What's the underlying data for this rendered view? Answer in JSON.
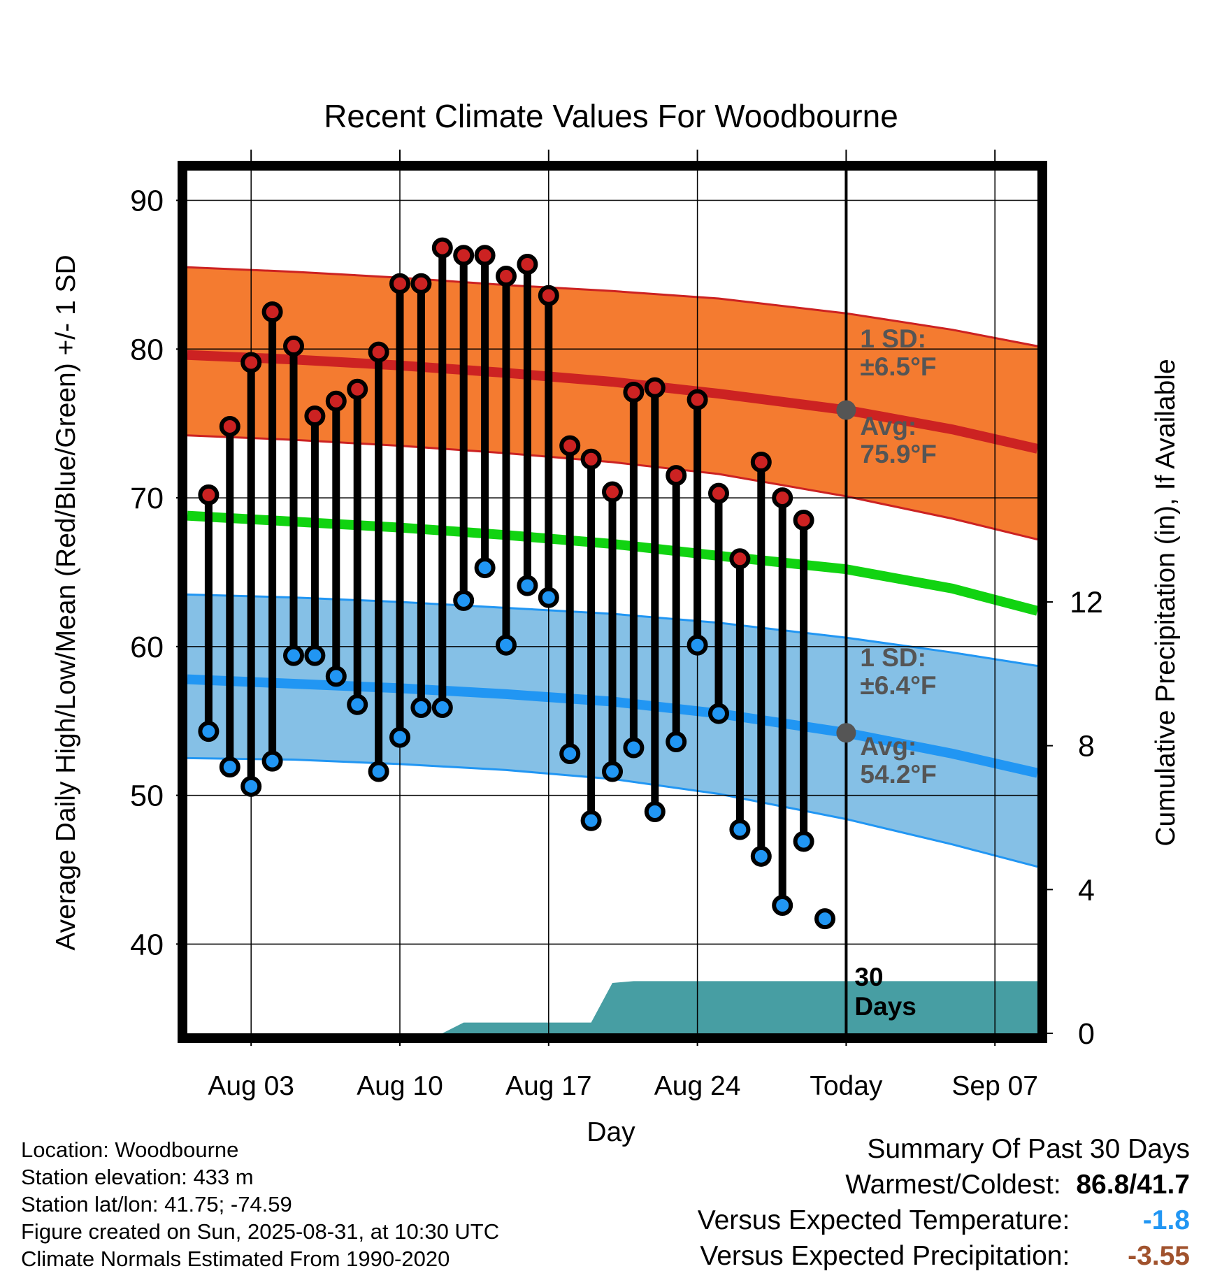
{
  "title": "Recent Climate Values For Woodbourne",
  "chart_data": {
    "type": "line",
    "title": "Recent Climate Values For Woodbourne",
    "xlabel": "Day",
    "ylabel": "Average Daily High/Low/Mean (Red/Blue/Green) +/- 1 SD",
    "y2label": "Cumulative Precipitation (in), If Available",
    "ylim": [
      34,
      92
    ],
    "y2lim": [
      0,
      24
    ],
    "xlim": [
      "2025-07-31",
      "2025-09-09"
    ],
    "y_ticks": [
      "40",
      "50",
      "60",
      "70",
      "80",
      "90"
    ],
    "y2_ticks": [
      "0",
      "4",
      "8",
      "12"
    ],
    "x_ticks": [
      {
        "date": "2025-08-03",
        "label": "Aug 03"
      },
      {
        "date": "2025-08-10",
        "label": "Aug 10"
      },
      {
        "date": "2025-08-17",
        "label": "Aug 17"
      },
      {
        "date": "2025-08-24",
        "label": "Aug 24"
      },
      {
        "date": "2025-08-31",
        "label": "Today"
      },
      {
        "date": "2025-09-07",
        "label": "Sep 07"
      }
    ],
    "today": "2025-08-31",
    "grid": true,
    "normals": {
      "dates": [
        "2025-07-31",
        "2025-08-05",
        "2025-08-10",
        "2025-08-15",
        "2025-08-20",
        "2025-08-25",
        "2025-08-31",
        "2025-09-05",
        "2025-09-09"
      ],
      "high_avg": [
        79.6,
        79.3,
        78.9,
        78.4,
        77.8,
        77.0,
        75.9,
        74.6,
        73.3
      ],
      "high_upper": [
        85.5,
        85.2,
        84.8,
        84.3,
        83.9,
        83.4,
        82.4,
        81.3,
        80.2
      ],
      "high_lower": [
        74.2,
        73.9,
        73.5,
        73.0,
        72.4,
        71.6,
        70.1,
        68.6,
        67.2
      ],
      "mean_avg": [
        68.8,
        68.4,
        68.0,
        67.5,
        66.9,
        66.1,
        65.2,
        63.9,
        62.4
      ],
      "low_avg": [
        57.8,
        57.5,
        57.2,
        56.8,
        56.3,
        55.5,
        54.2,
        52.8,
        51.5
      ],
      "low_upper": [
        63.5,
        63.3,
        63.0,
        62.6,
        62.2,
        61.6,
        60.6,
        59.6,
        58.7
      ],
      "low_lower": [
        52.5,
        52.4,
        52.1,
        51.7,
        51.1,
        50.1,
        48.4,
        46.7,
        45.2
      ]
    },
    "series": [
      {
        "name": "Daily High",
        "color": "#cc2222",
        "x": [
          "2025-08-01",
          "2025-08-02",
          "2025-08-03",
          "2025-08-04",
          "2025-08-05",
          "2025-08-06",
          "2025-08-07",
          "2025-08-08",
          "2025-08-09",
          "2025-08-10",
          "2025-08-11",
          "2025-08-12",
          "2025-08-13",
          "2025-08-14",
          "2025-08-15",
          "2025-08-16",
          "2025-08-17",
          "2025-08-18",
          "2025-08-19",
          "2025-08-20",
          "2025-08-21",
          "2025-08-22",
          "2025-08-23",
          "2025-08-24",
          "2025-08-25",
          "2025-08-26",
          "2025-08-27",
          "2025-08-28",
          "2025-08-29",
          "2025-08-30"
        ],
        "values": [
          70.2,
          74.8,
          79.1,
          82.5,
          80.2,
          75.5,
          76.5,
          77.3,
          79.8,
          84.4,
          84.4,
          86.8,
          86.3,
          86.3,
          84.9,
          85.7,
          83.6,
          73.5,
          72.6,
          70.4,
          77.1,
          77.4,
          71.5,
          76.6,
          70.3,
          65.9,
          72.4,
          70.0,
          68.5,
          null
        ]
      },
      {
        "name": "Daily Low",
        "color": "#2196f3",
        "x": [
          "2025-08-01",
          "2025-08-02",
          "2025-08-03",
          "2025-08-04",
          "2025-08-05",
          "2025-08-06",
          "2025-08-07",
          "2025-08-08",
          "2025-08-09",
          "2025-08-10",
          "2025-08-11",
          "2025-08-12",
          "2025-08-13",
          "2025-08-14",
          "2025-08-15",
          "2025-08-16",
          "2025-08-17",
          "2025-08-18",
          "2025-08-19",
          "2025-08-20",
          "2025-08-21",
          "2025-08-22",
          "2025-08-23",
          "2025-08-24",
          "2025-08-25",
          "2025-08-26",
          "2025-08-27",
          "2025-08-28",
          "2025-08-29",
          "2025-08-30"
        ],
        "values": [
          54.3,
          51.9,
          50.6,
          52.3,
          59.4,
          59.4,
          58.0,
          56.1,
          51.6,
          53.9,
          55.9,
          55.9,
          63.1,
          65.3,
          60.1,
          64.1,
          63.3,
          52.8,
          48.3,
          51.6,
          53.2,
          48.9,
          53.6,
          60.1,
          55.5,
          47.7,
          45.9,
          42.6,
          46.9,
          41.7
        ]
      }
    ],
    "precipitation": {
      "color": "#479ea3",
      "x": [
        "2025-07-31",
        "2025-08-12",
        "2025-08-13",
        "2025-08-19",
        "2025-08-20",
        "2025-08-21",
        "2025-09-09"
      ],
      "values": [
        0,
        0,
        0.3,
        0.3,
        1.4,
        1.45,
        1.45
      ]
    },
    "band_colors": {
      "high": "#f47b30",
      "low": "#85c0e6",
      "mean": "#11d311",
      "high_avg": "#cc2222",
      "low_avg": "#2196f3"
    },
    "annotations": {
      "high_sd_label": "1 SD:",
      "high_sd_value": "±6.5°F",
      "high_avg_label": "Avg:",
      "high_avg_value": "75.9°F",
      "low_sd_label": "1 SD:",
      "low_sd_value": "±6.4°F",
      "low_avg_label": "Avg:",
      "low_avg_value": "54.2°F",
      "window_number": "30",
      "window_unit": "Days"
    }
  },
  "info": {
    "location": "Location: Woodbourne",
    "elevation": "Station elevation: 433 m",
    "latlon": "Station lat/lon: 41.75; -74.59",
    "created": "Figure created on Sun, 2025-08-31, at 10:30 UTC",
    "normals": "Climate Normals Estimated From 1990-2020"
  },
  "summary": {
    "heading": "Summary Of Past 30 Days",
    "warmest_label": "Warmest/Coldest:",
    "warmest_value": "86.8/41.7",
    "temp_label": "Versus Expected Temperature:",
    "temp_value": "-1.8",
    "temp_color": "#2196f3",
    "precip_label": "Versus Expected Precipitation:",
    "precip_value": "-3.55",
    "precip_color": "#a0522d"
  }
}
